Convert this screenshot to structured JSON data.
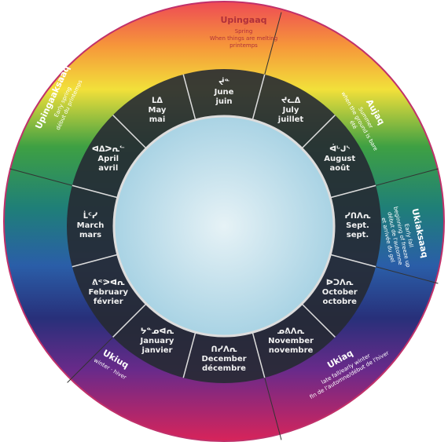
{
  "months": [
    {
      "syllabics": "ᒪᐃ",
      "english": "May",
      "french": "mai"
    },
    {
      "syllabics": "ᔫᓐ",
      "english": "June",
      "french": "juin"
    },
    {
      "syllabics": "ᔪᓚᐃ",
      "english": "July",
      "french": "juillet"
    },
    {
      "syllabics": "ᐋᒡᒍᔅ",
      "english": "August",
      "french": "août"
    },
    {
      "syllabics": "ᓯᑎᐱᕆ",
      "english": "Sept.",
      "french": "sept."
    },
    {
      "syllabics": "ᐅᑐᐱᕆ",
      "english": "October",
      "french": "octobre"
    },
    {
      "syllabics": "ᓄᕕᐱᕆ",
      "english": "November",
      "french": "novembre"
    },
    {
      "syllabics": "ᑎᓯᐱᕆ",
      "english": "December",
      "french": "décembre"
    },
    {
      "syllabics": "ᔭᓐᓄᐊᕆ",
      "english": "January",
      "french": "janvier"
    },
    {
      "syllabics": "ᕕᕝᕗᐊᕆ",
      "english": "February",
      "french": "février"
    },
    {
      "syllabics": "ᒫᑦᓯ",
      "english": "March",
      "french": "mars"
    },
    {
      "syllabics": "ᐊᐃᐳᕆᓪ",
      "english": "April",
      "french": "avril"
    }
  ],
  "seasons": [
    {
      "name": "Upingaaq",
      "lines": [
        "Spring",
        "When things are melting",
        "printemps"
      ]
    },
    {
      "name": "Aujaq",
      "lines": [
        "Summer",
        "when the ground is bare",
        "été"
      ]
    },
    {
      "name": "Ukiaksaaq",
      "lines": [
        "Early fall",
        "beginning of freeze up",
        "début de l'automne",
        "et arrivée du gel"
      ]
    },
    {
      "name": "Ukiaq",
      "lines": [
        "late fall/early winter",
        "fin de l'automne/début de l'hiver"
      ]
    },
    {
      "name": "Ukiuq",
      "lines": [
        "winter · hiver"
      ]
    },
    {
      "name": "Upingaaksaaq",
      "lines": [
        "Early spring",
        "début du printemps"
      ]
    }
  ]
}
